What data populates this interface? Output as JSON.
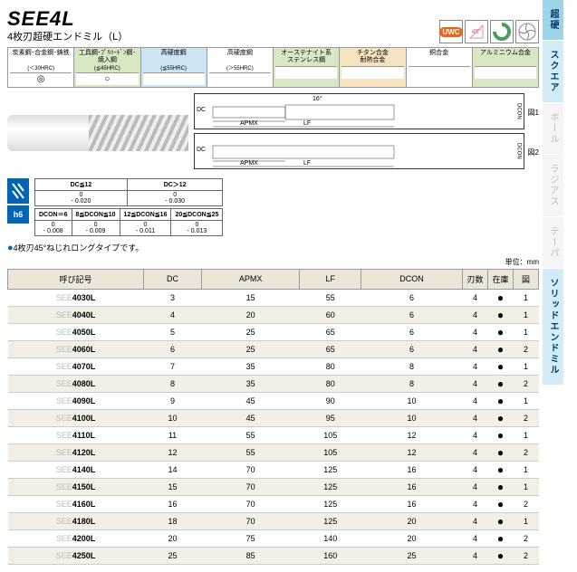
{
  "header": {
    "title": "SEE4L",
    "subtitle": "4枚刃超硬エンドミル（L）"
  },
  "icons": {
    "uwc": "UWC",
    "angle": "45°"
  },
  "materials": [
    {
      "name": "炭素鋼･合金鋼･鋳鉄",
      "sub": "(＜30HRC)",
      "mark": "◎",
      "bg": "#ffffff"
    },
    {
      "name": "工具鋼･ﾌﾟﾘﾊｰﾄﾞﾝ鋼･焼入鋼",
      "sub": "(≦45HRC)",
      "mark": "○",
      "bg": "#d9e8c4"
    },
    {
      "name": "高硬度鋼",
      "sub": "(≦55HRC)",
      "mark": "",
      "bg": "#cde4f2"
    },
    {
      "name": "高硬度鋼",
      "sub": "(＞55HRC)",
      "mark": "",
      "bg": "#ffffff"
    },
    {
      "name": "オーステナイト系\nステンレス鋼",
      "sub": "",
      "mark": "",
      "bg": "#d9e8c4"
    },
    {
      "name": "チタン合金\n耐熱合金",
      "sub": "",
      "mark": "",
      "bg": "#f6e4c0"
    },
    {
      "name": "銅合金",
      "sub": "",
      "mark": "",
      "bg": "#ffffff"
    },
    {
      "name": "アルミニウム合金",
      "sub": "",
      "mark": "",
      "bg": "#d9e8c4"
    }
  ],
  "diagram": {
    "fig1": "図1",
    "fig2": "図2",
    "dc": "DC",
    "apmx": "APMX",
    "lf": "LF",
    "dcon": "DCON",
    "angle": "16°"
  },
  "tol": {
    "icon1": "▥",
    "icon2": "h6",
    "t1": {
      "h": [
        "DC≦12",
        "DC＞12"
      ],
      "r": [
        [
          "0\n- 0.020",
          "0\n- 0.030"
        ]
      ]
    },
    "t2": {
      "h": [
        "DCON＝6",
        "8≦DCON≦10",
        "12≦DCON≦16",
        "20≦DCON≦25"
      ],
      "r": [
        [
          "0\n- 0.008",
          "0\n- 0.009",
          "0\n- 0.011",
          "0\n- 0.013"
        ]
      ]
    }
  },
  "note": "4枚刃45°ねじれロングタイプです。",
  "unit": "単位：mm",
  "table": {
    "headers": [
      "呼び記号",
      "DC",
      "APMX",
      "LF",
      "DCON",
      "刃数",
      "在庫",
      "図"
    ],
    "rows": [
      {
        "name": "SEE4030L",
        "dc": 3,
        "apmx": 15,
        "lf": 55,
        "dcon": 6,
        "fl": 4,
        "st": "●",
        "fig": 1
      },
      {
        "name": "SEE4040L",
        "dc": 4,
        "apmx": 20,
        "lf": 60,
        "dcon": 6,
        "fl": 4,
        "st": "●",
        "fig": 1,
        "alt": true
      },
      {
        "name": "SEE4050L",
        "dc": 5,
        "apmx": 25,
        "lf": 65,
        "dcon": 6,
        "fl": 4,
        "st": "●",
        "fig": 1
      },
      {
        "name": "SEE4060L",
        "dc": 6,
        "apmx": 25,
        "lf": 65,
        "dcon": 6,
        "fl": 4,
        "st": "●",
        "fig": 2,
        "alt": true
      },
      {
        "name": "SEE4070L",
        "dc": 7,
        "apmx": 35,
        "lf": 80,
        "dcon": 8,
        "fl": 4,
        "st": "●",
        "fig": 1
      },
      {
        "name": "SEE4080L",
        "dc": 8,
        "apmx": 35,
        "lf": 80,
        "dcon": 8,
        "fl": 4,
        "st": "●",
        "fig": 2,
        "alt": true
      },
      {
        "name": "SEE4090L",
        "dc": 9,
        "apmx": 45,
        "lf": 90,
        "dcon": 10,
        "fl": 4,
        "st": "●",
        "fig": 1
      },
      {
        "name": "SEE4100L",
        "dc": 10,
        "apmx": 45,
        "lf": 95,
        "dcon": 10,
        "fl": 4,
        "st": "●",
        "fig": 2,
        "alt": true
      },
      {
        "name": "SEE4110L",
        "dc": 11,
        "apmx": 55,
        "lf": 105,
        "dcon": 12,
        "fl": 4,
        "st": "●",
        "fig": 1
      },
      {
        "name": "SEE4120L",
        "dc": 12,
        "apmx": 55,
        "lf": 105,
        "dcon": 12,
        "fl": 4,
        "st": "●",
        "fig": 2,
        "alt": true
      },
      {
        "name": "SEE4140L",
        "dc": 14,
        "apmx": 70,
        "lf": 125,
        "dcon": 16,
        "fl": 4,
        "st": "●",
        "fig": 1
      },
      {
        "name": "SEE4150L",
        "dc": 15,
        "apmx": 70,
        "lf": 125,
        "dcon": 16,
        "fl": 4,
        "st": "●",
        "fig": 1,
        "alt": true
      },
      {
        "name": "SEE4160L",
        "dc": 16,
        "apmx": 70,
        "lf": 125,
        "dcon": 16,
        "fl": 4,
        "st": "●",
        "fig": 2
      },
      {
        "name": "SEE4180L",
        "dc": 18,
        "apmx": 70,
        "lf": 125,
        "dcon": 20,
        "fl": 4,
        "st": "●",
        "fig": 1,
        "alt": true
      },
      {
        "name": "SEE4200L",
        "dc": 20,
        "apmx": 75,
        "lf": 140,
        "dcon": 20,
        "fl": 4,
        "st": "●",
        "fig": 2
      },
      {
        "name": "SEE4250L",
        "dc": 25,
        "apmx": 85,
        "lf": 160,
        "dcon": 25,
        "fl": 4,
        "st": "●",
        "fig": 2,
        "alt": true
      }
    ]
  },
  "sidebar": [
    {
      "label": "超硬",
      "bg": "#9fd4e8",
      "color": "#003a66",
      "bold": true
    },
    {
      "label": "スクエア",
      "bg": "#d4ecf7",
      "color": "#003a66",
      "bold": true
    },
    {
      "label": "ボール",
      "bg": "#f5f5f5",
      "color": "#bbb"
    },
    {
      "label": "ラジアス",
      "bg": "#f5f5f5",
      "color": "#bbb"
    },
    {
      "label": "テーパ",
      "bg": "#f5f5f5",
      "color": "#bbb"
    },
    {
      "label": "ソリッドエンドミル",
      "bg": "#d4ecf7",
      "color": "#003a66",
      "bold": true
    }
  ]
}
